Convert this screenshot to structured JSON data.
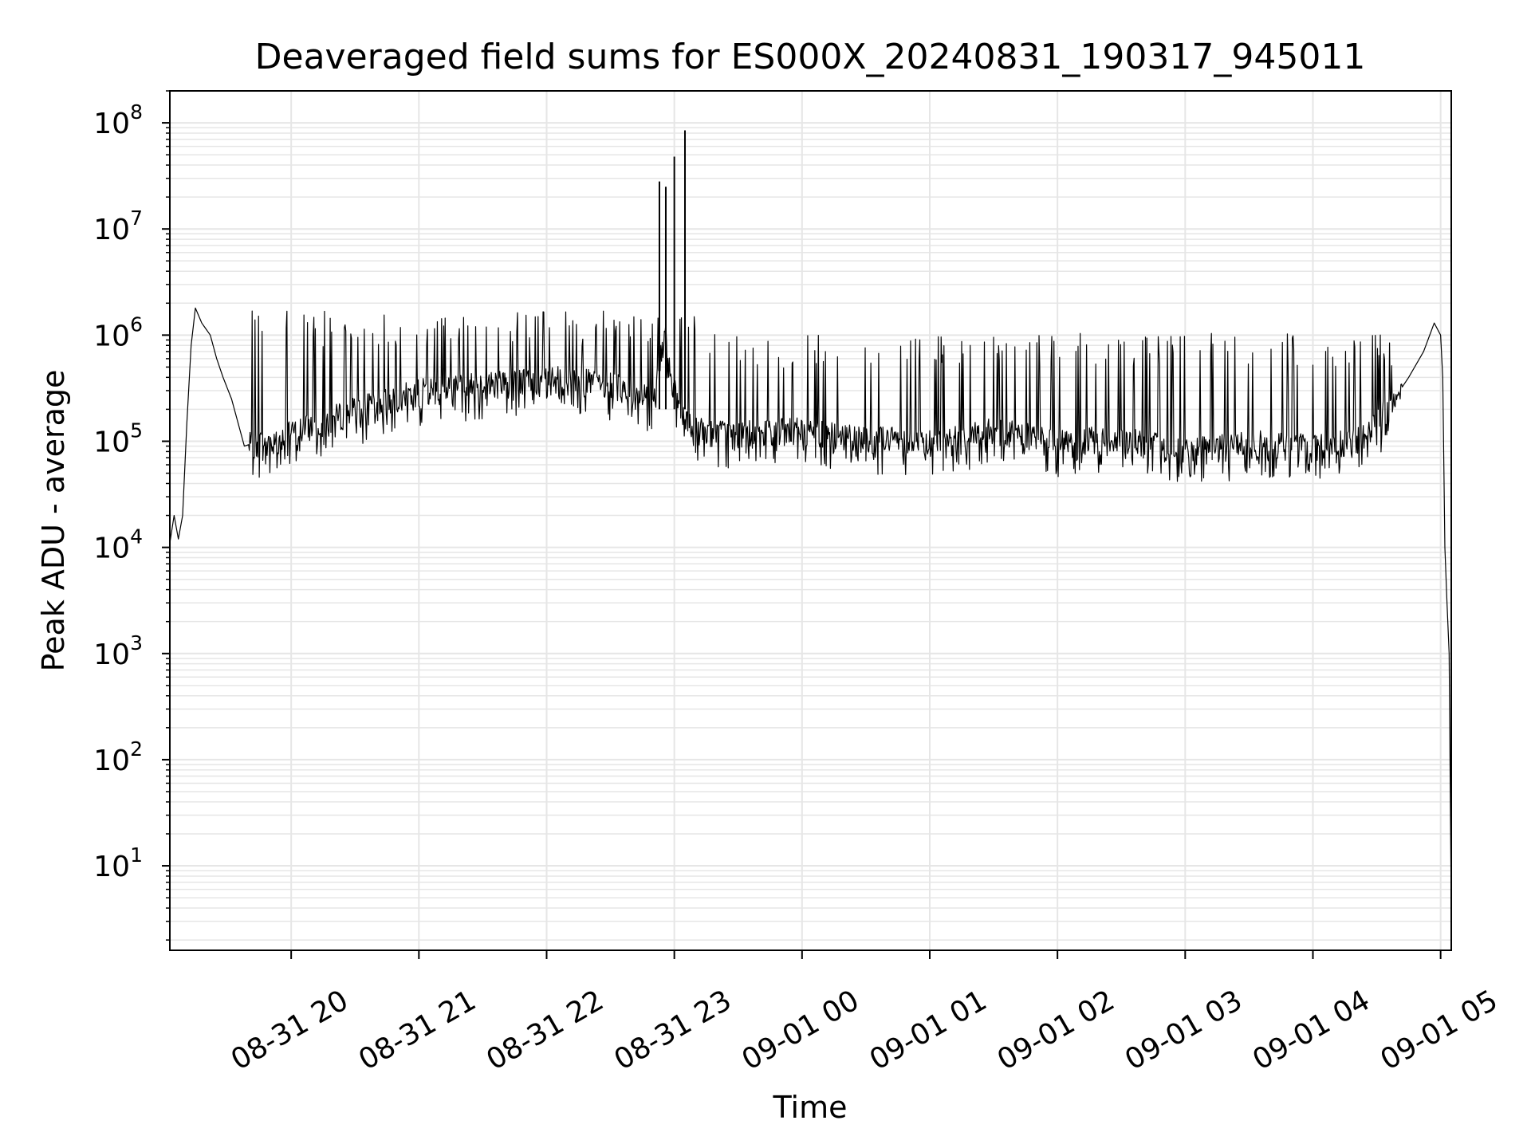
{
  "chart_data": {
    "type": "line",
    "title": "Deaveraged field sums for ES000X_20240831_190317_945011",
    "xlabel": "Time",
    "ylabel": "Peak ADU - average",
    "yscale": "log",
    "ylim": [
      1.6,
      200000000.0
    ],
    "xlim": [
      "2024-08-31 19:03",
      "2024-09-01 05:05"
    ],
    "grid": true,
    "line_color": "#000000",
    "grid_color": "#e6e6e6",
    "x_ticks": [
      {
        "value": "2024-08-31 20:00",
        "label": "08-31 20"
      },
      {
        "value": "2024-08-31 21:00",
        "label": "08-31 21"
      },
      {
        "value": "2024-08-31 22:00",
        "label": "08-31 22"
      },
      {
        "value": "2024-08-31 23:00",
        "label": "08-31 23"
      },
      {
        "value": "2024-09-01 00:00",
        "label": "09-01 00"
      },
      {
        "value": "2024-09-01 01:00",
        "label": "09-01 01"
      },
      {
        "value": "2024-09-01 02:00",
        "label": "09-01 02"
      },
      {
        "value": "2024-09-01 03:00",
        "label": "09-01 03"
      },
      {
        "value": "2024-09-01 04:00",
        "label": "09-01 04"
      },
      {
        "value": "2024-09-01 05:00",
        "label": "09-01 05"
      }
    ],
    "y_ticks": [
      {
        "base": "10",
        "exp": "1"
      },
      {
        "base": "10",
        "exp": "2"
      },
      {
        "base": "10",
        "exp": "3"
      },
      {
        "base": "10",
        "exp": "4"
      },
      {
        "base": "10",
        "exp": "5"
      },
      {
        "base": "10",
        "exp": "6"
      },
      {
        "base": "10",
        "exp": "7"
      },
      {
        "base": "10",
        "exp": "8"
      }
    ],
    "series": [
      {
        "x": [
          "2024-08-31 19:03",
          "2024-08-31 19:05",
          "2024-08-31 19:07",
          "2024-08-31 19:09",
          "2024-08-31 19:11",
          "2024-08-31 19:13",
          "2024-08-31 19:15",
          "2024-08-31 19:18",
          "2024-08-31 19:22",
          "2024-08-31 19:25",
          "2024-08-31 19:28",
          "2024-08-31 19:32",
          "2024-08-31 19:38",
          "2024-08-31 19:45",
          "2024-08-31 20:00",
          "2024-08-31 20:30",
          "2024-08-31 21:00",
          "2024-08-31 21:30",
          "2024-08-31 22:00",
          "2024-08-31 22:30",
          "2024-08-31 22:50",
          "2024-08-31 22:55",
          "2024-08-31 23:00",
          "2024-08-31 23:05",
          "2024-08-31 23:10",
          "2024-08-31 23:30",
          "2024-09-01 00:00",
          "2024-09-01 00:30",
          "2024-09-01 01:00",
          "2024-09-01 01:30",
          "2024-09-01 02:00",
          "2024-09-01 02:30",
          "2024-09-01 03:00",
          "2024-09-01 03:30",
          "2024-09-01 04:00",
          "2024-09-01 04:20",
          "2024-09-01 04:35",
          "2024-09-01 04:45",
          "2024-09-01 04:52",
          "2024-09-01 04:57",
          "2024-09-01 05:00",
          "2024-09-01 05:01",
          "2024-09-01 05:02",
          "2024-09-01 05:03",
          "2024-09-01 05:04",
          "2024-09-01 05:05"
        ],
        "y": [
          11000.0,
          20000.0,
          12000.0,
          20000.0,
          150000.0,
          800000.0,
          1800000.0,
          1300000.0,
          1000000.0,
          600000.0,
          400000.0,
          250000.0,
          90000.0,
          100000.0,
          120000.0,
          200000.0,
          300000.0,
          350000.0,
          400000.0,
          350000.0,
          250000.0,
          1000000.0,
          300000.0,
          150000.0,
          130000.0,
          120000.0,
          130000.0,
          110000.0,
          100000.0,
          130000.0,
          100000.0,
          110000.0,
          80000.0,
          100000.0,
          90000.0,
          100000.0,
          200000.0,
          400000.0,
          700000.0,
          1300000.0,
          1000000.0,
          400000.0,
          10000.0,
          3000.0,
          1000.0,
          4.0
        ]
      }
    ]
  }
}
